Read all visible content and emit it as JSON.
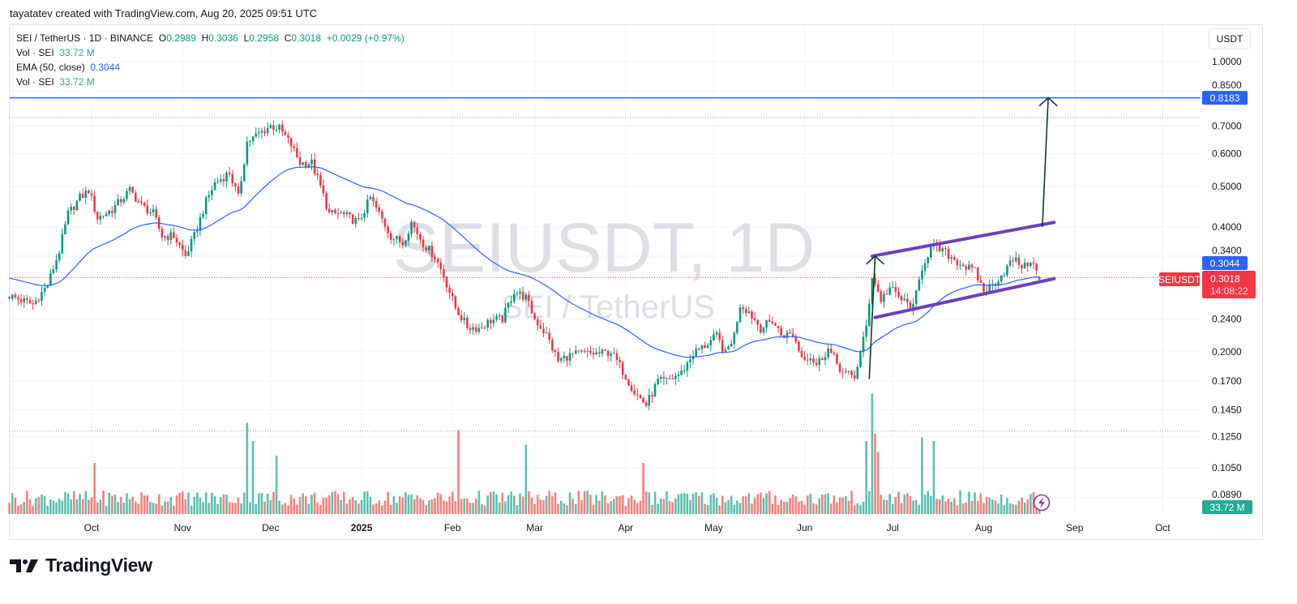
{
  "header": {
    "attribution": "tayatatev created with TradingView.com, Aug 20, 2025 09:51 UTC"
  },
  "legend": {
    "symbol": "SEI / TetherUS · 1D · BINANCE",
    "o_label": "O",
    "o": "0.2989",
    "h_label": "H",
    "h": "0.3036",
    "l_label": "L",
    "l": "0.2958",
    "c_label": "C",
    "c": "0.3018",
    "change": "+0.0029 (+0.97%)",
    "vol1_label": "Vol · SEI",
    "vol1": "33.72 M",
    "ema_label": "EMA (50, close)",
    "ema": "0.3044",
    "vol2_label": "Vol · SEI",
    "vol2": "33.72 M"
  },
  "price_axis": {
    "currency": "USDT",
    "ticks": [
      {
        "label": "1.0000",
        "value": 1.0
      },
      {
        "label": "0.8500",
        "value": 0.85
      },
      {
        "label": "0.7000",
        "value": 0.7
      },
      {
        "label": "0.6000",
        "value": 0.6
      },
      {
        "label": "0.5000",
        "value": 0.5
      },
      {
        "label": "0.4000",
        "value": 0.4
      },
      {
        "label": "0.3400",
        "value": 0.34
      },
      {
        "label": "0.2400",
        "value": 0.24
      },
      {
        "label": "0.2000",
        "value": 0.2
      },
      {
        "label": "0.1700",
        "value": 0.17
      },
      {
        "label": "0.1450",
        "value": 0.145
      },
      {
        "label": "0.1250",
        "value": 0.125
      },
      {
        "label": "0.1050",
        "value": 0.105
      },
      {
        "label": "0.0890",
        "value": 0.089
      }
    ],
    "target_label": "0.8183",
    "ema_label": "0.3044",
    "symbol_tag": "SEIUSDT",
    "last_price": "0.3018",
    "countdown": "14:08:22",
    "volume_label": "33.72 M"
  },
  "time_axis": {
    "ticks": [
      {
        "label": "Oct",
        "date": "2024-10-01"
      },
      {
        "label": "Nov",
        "date": "2024-11-01"
      },
      {
        "label": "Dec",
        "date": "2024-12-01"
      },
      {
        "label": "2025",
        "date": "2025-01-01",
        "bold": true
      },
      {
        "label": "Feb",
        "date": "2025-02-01"
      },
      {
        "label": "Mar",
        "date": "2025-03-01"
      },
      {
        "label": "Apr",
        "date": "2025-04-01"
      },
      {
        "label": "May",
        "date": "2025-05-01"
      },
      {
        "label": "Jun",
        "date": "2025-06-01"
      },
      {
        "label": "Jul",
        "date": "2025-07-01"
      },
      {
        "label": "Aug",
        "date": "2025-08-01"
      },
      {
        "label": "Sep",
        "date": "2025-09-01"
      },
      {
        "label": "Oct",
        "date": "2025-10-01"
      }
    ]
  },
  "watermark": {
    "line1": "SEIUSDT, 1D",
    "line2": "SEI / TetherUS"
  },
  "brand": {
    "logo_text": "TradingView"
  },
  "colors": {
    "up": "#089981",
    "down": "#f23645",
    "vol_up": "#5cc0b0",
    "vol_down": "#f7807c",
    "ema": "#2962ff",
    "target_line": "#2962ff",
    "channel": "#6f3fc0",
    "arrow": "#0c3b2e",
    "alert": "#9c27b0"
  },
  "chart_data": {
    "type": "candlestick",
    "scale": "log",
    "ylim": [
      0.085,
      1.08
    ],
    "xlim": [
      "2024-09-03",
      "2025-10-10"
    ],
    "grid": true,
    "close_path": [
      [
        "2024-09-03",
        0.273
      ],
      [
        "2024-09-11",
        0.26
      ],
      [
        "2024-09-16",
        0.29
      ],
      [
        "2024-09-20",
        0.35
      ],
      [
        "2024-09-23",
        0.43
      ],
      [
        "2024-09-27",
        0.47
      ],
      [
        "2024-09-30",
        0.49
      ],
      [
        "2024-10-03",
        0.42
      ],
      [
        "2024-10-08",
        0.44
      ],
      [
        "2024-10-14",
        0.49
      ],
      [
        "2024-10-18",
        0.45
      ],
      [
        "2024-10-22",
        0.43
      ],
      [
        "2024-10-25",
        0.38
      ],
      [
        "2024-10-29",
        0.38
      ],
      [
        "2024-11-02",
        0.34
      ],
      [
        "2024-11-05",
        0.38
      ],
      [
        "2024-11-09",
        0.46
      ],
      [
        "2024-11-12",
        0.51
      ],
      [
        "2024-11-17",
        0.54
      ],
      [
        "2024-11-20",
        0.47
      ],
      [
        "2024-11-23",
        0.64
      ],
      [
        "2024-11-27",
        0.67
      ],
      [
        "2024-12-01",
        0.7
      ],
      [
        "2024-12-04",
        0.69
      ],
      [
        "2024-12-08",
        0.63
      ],
      [
        "2024-12-11",
        0.57
      ],
      [
        "2024-12-15",
        0.57
      ],
      [
        "2024-12-18",
        0.5
      ],
      [
        "2024-12-21",
        0.43
      ],
      [
        "2024-12-25",
        0.43
      ],
      [
        "2024-12-31",
        0.41
      ],
      [
        "2025-01-04",
        0.47
      ],
      [
        "2025-01-07",
        0.43
      ],
      [
        "2025-01-11",
        0.38
      ],
      [
        "2025-01-15",
        0.365
      ],
      [
        "2025-01-18",
        0.41
      ],
      [
        "2025-01-22",
        0.365
      ],
      [
        "2025-01-26",
        0.34
      ],
      [
        "2025-01-29",
        0.305
      ],
      [
        "2025-02-02",
        0.255
      ],
      [
        "2025-02-06",
        0.23
      ],
      [
        "2025-02-10",
        0.228
      ],
      [
        "2025-02-14",
        0.238
      ],
      [
        "2025-02-18",
        0.24
      ],
      [
        "2025-02-22",
        0.28
      ],
      [
        "2025-02-26",
        0.27
      ],
      [
        "2025-03-01",
        0.24
      ],
      [
        "2025-03-05",
        0.22
      ],
      [
        "2025-03-09",
        0.19
      ],
      [
        "2025-03-12",
        0.195
      ],
      [
        "2025-03-16",
        0.198
      ],
      [
        "2025-03-23",
        0.198
      ],
      [
        "2025-03-27",
        0.2
      ],
      [
        "2025-03-31",
        0.18
      ],
      [
        "2025-04-04",
        0.16
      ],
      [
        "2025-04-08",
        0.149
      ],
      [
        "2025-04-12",
        0.17
      ],
      [
        "2025-04-15",
        0.17
      ],
      [
        "2025-04-20",
        0.178
      ],
      [
        "2025-04-24",
        0.198
      ],
      [
        "2025-04-28",
        0.207
      ],
      [
        "2025-05-02",
        0.218
      ],
      [
        "2025-05-05",
        0.198
      ],
      [
        "2025-05-08",
        0.22
      ],
      [
        "2025-05-10",
        0.26
      ],
      [
        "2025-05-13",
        0.25
      ],
      [
        "2025-05-17",
        0.228
      ],
      [
        "2025-05-21",
        0.238
      ],
      [
        "2025-05-24",
        0.22
      ],
      [
        "2025-05-28",
        0.22
      ],
      [
        "2025-05-31",
        0.195
      ],
      [
        "2025-06-03",
        0.195
      ],
      [
        "2025-06-05",
        0.186
      ],
      [
        "2025-06-09",
        0.203
      ],
      [
        "2025-06-14",
        0.178
      ],
      [
        "2025-06-18",
        0.174
      ],
      [
        "2025-06-20",
        0.198
      ],
      [
        "2025-06-22",
        0.23
      ],
      [
        "2025-06-24",
        0.305
      ],
      [
        "2025-06-27",
        0.267
      ],
      [
        "2025-06-30",
        0.285
      ],
      [
        "2025-07-04",
        0.267
      ],
      [
        "2025-07-08",
        0.255
      ],
      [
        "2025-07-11",
        0.32
      ],
      [
        "2025-07-14",
        0.357
      ],
      [
        "2025-07-18",
        0.35
      ],
      [
        "2025-07-22",
        0.334
      ],
      [
        "2025-07-26",
        0.32
      ],
      [
        "2025-07-29",
        0.312
      ],
      [
        "2025-08-01",
        0.28
      ],
      [
        "2025-08-04",
        0.29
      ],
      [
        "2025-08-08",
        0.312
      ],
      [
        "2025-08-11",
        0.334
      ],
      [
        "2025-08-15",
        0.32
      ],
      [
        "2025-08-17",
        0.334
      ],
      [
        "2025-08-20",
        0.3018
      ]
    ],
    "last_candle": {
      "date": "2025-08-20",
      "open": 0.2989,
      "high": 0.3036,
      "low": 0.2958,
      "close": 0.3018,
      "volume_m": 33.72
    },
    "ema": {
      "period": 50,
      "source": "close",
      "last": 0.3044
    },
    "volume_unit": "M",
    "volume_typical_m": 48,
    "volume_spikes_m": [
      [
        "2024-11-23",
        250
      ],
      [
        "2024-11-25",
        200
      ],
      [
        "2024-10-02",
        140
      ],
      [
        "2024-12-03",
        160
      ],
      [
        "2025-02-03",
        230
      ],
      [
        "2025-02-26",
        190
      ],
      [
        "2025-04-07",
        140
      ],
      [
        "2025-06-22",
        200
      ],
      [
        "2025-06-24",
        330
      ],
      [
        "2025-06-25",
        220
      ],
      [
        "2025-06-26",
        170
      ],
      [
        "2025-07-11",
        210
      ],
      [
        "2025-07-15",
        200
      ]
    ],
    "range_high": 0.733,
    "range_low": 0.129,
    "annotations": {
      "target_line": {
        "price": 0.8183
      },
      "channel_upper": [
        [
          "2025-06-24",
          0.34
        ],
        [
          "2025-08-25",
          0.41
        ]
      ],
      "channel_lower": [
        [
          "2025-06-25",
          0.242
        ],
        [
          "2025-08-25",
          0.3
        ]
      ],
      "arrows": [
        [
          [
            "2025-06-23",
            0.172
          ],
          [
            "2025-06-25",
            0.34
          ]
        ],
        [
          [
            "2025-08-21",
            0.4
          ],
          [
            "2025-08-23",
            0.8183
          ]
        ]
      ]
    }
  }
}
